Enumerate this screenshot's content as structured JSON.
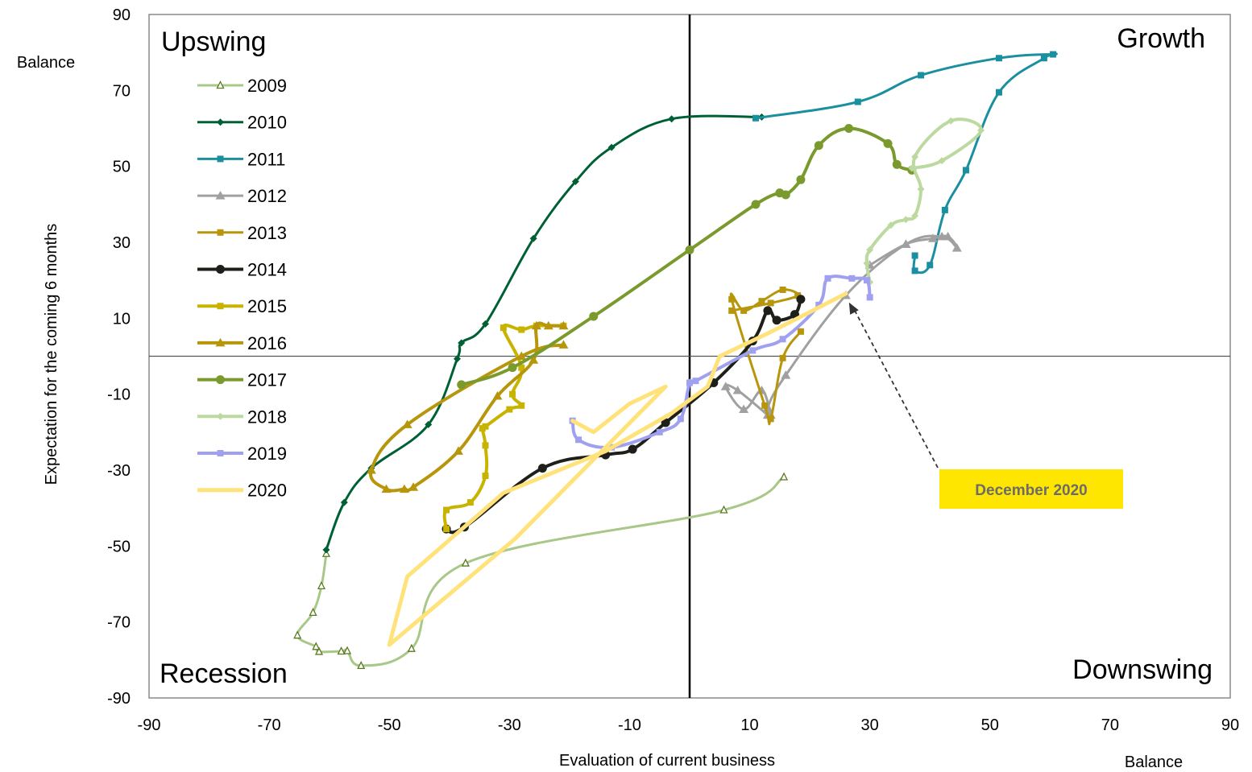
{
  "chart_data": {
    "type": "line",
    "subtype": "connected-scatter (ifo business cycle clock)",
    "title": "",
    "xlabel": "Evaluation  of current business",
    "ylabel": "Expectation for the coming 6 months",
    "x_unit_label": "Balance",
    "y_unit_label": "Balance",
    "xlim": [
      -90,
      90
    ],
    "ylim": [
      -90,
      90
    ],
    "x_ticks": [
      -90,
      -70,
      -50,
      -30,
      -10,
      10,
      30,
      50,
      70,
      90
    ],
    "y_ticks": [
      -90,
      -70,
      -50,
      -30,
      -10,
      10,
      30,
      50,
      70,
      90
    ],
    "grid": false,
    "legend_position": "top-left",
    "quadrants": {
      "top_left": "Upswing",
      "top_right": "Growth",
      "bottom_left": "Recession",
      "bottom_right": "Downswing"
    },
    "annotation": {
      "text": "December 2020",
      "points_to": [
        26,
        15
      ],
      "background": "#ffe600"
    },
    "series": [
      {
        "name": "2009",
        "color": "#a8c888",
        "marker": "triangle-hollow",
        "lineWidth": 3,
        "points": [
          [
            15.7,
            -31.8
          ],
          [
            5.7,
            -40.5
          ],
          [
            -37.3,
            -54.5
          ],
          [
            -46.3,
            -77
          ],
          [
            -54.7,
            -81.5
          ],
          [
            -57,
            -77.6
          ],
          [
            -58,
            -77.7
          ],
          [
            -61.7,
            -77.8
          ],
          [
            -62.2,
            -76.5
          ],
          [
            -65.3,
            -73.5
          ],
          [
            -62.7,
            -67.5
          ],
          [
            -61.3,
            -60.5
          ],
          [
            -60.5,
            -52
          ]
        ]
      },
      {
        "name": "2010",
        "color": "#006035",
        "marker": "diamond",
        "lineWidth": 3,
        "points": [
          [
            -60.5,
            -51
          ],
          [
            -57.5,
            -38.5
          ],
          [
            -53,
            -29.5
          ],
          [
            -43.5,
            -18
          ],
          [
            -38.7,
            -0.7
          ],
          [
            -38,
            3.5
          ],
          [
            -34,
            8.5
          ],
          [
            -26,
            31
          ],
          [
            -19,
            46
          ],
          [
            -13,
            55
          ],
          [
            -3,
            62.5
          ],
          [
            12,
            63
          ]
        ]
      },
      {
        "name": "2011",
        "color": "#1a8fa0",
        "marker": "square",
        "lineWidth": 3,
        "points": [
          [
            11,
            62.7
          ],
          [
            28,
            67
          ],
          [
            38.5,
            74
          ],
          [
            51.5,
            78.5
          ],
          [
            60.5,
            79.5
          ],
          [
            59,
            78.5
          ],
          [
            51.5,
            69.5
          ],
          [
            46,
            49
          ],
          [
            42.5,
            38.5
          ],
          [
            40,
            24
          ],
          [
            37.5,
            22.5
          ],
          [
            37.5,
            26.5
          ]
        ]
      },
      {
        "name": "2012",
        "color": "#a0a0a0",
        "marker": "triangle",
        "lineWidth": 3,
        "points": [
          [
            30,
            24
          ],
          [
            36,
            29.5
          ],
          [
            40.5,
            31
          ],
          [
            43,
            31.5
          ],
          [
            44.5,
            28.5
          ],
          [
            42,
            31.5
          ],
          [
            36,
            29.5
          ],
          [
            26,
            16
          ],
          [
            16,
            -5
          ],
          [
            13,
            -13.5
          ],
          [
            13.5,
            -15.5
          ],
          [
            12,
            -9
          ],
          [
            9,
            -14
          ],
          [
            6,
            -8
          ],
          [
            8,
            -9
          ],
          [
            13,
            -15.5
          ]
        ]
      },
      {
        "name": "2013",
        "color": "#b8960c",
        "marker": "square",
        "lineWidth": 3,
        "points": [
          [
            18.5,
            6.5
          ],
          [
            15.5,
            -0.5
          ],
          [
            13.5,
            -16.5
          ],
          [
            12.5,
            -13
          ],
          [
            7,
            15
          ],
          [
            9,
            12
          ],
          [
            12,
            14.5
          ],
          [
            15.5,
            17.5
          ],
          [
            18,
            16
          ],
          [
            13.5,
            14
          ],
          [
            7,
            12
          ]
        ]
      },
      {
        "name": "2014",
        "color": "#1f1f1a",
        "marker": "circle",
        "lineWidth": 4,
        "points": [
          [
            18.5,
            15
          ],
          [
            17.5,
            11
          ],
          [
            14.5,
            9.5
          ],
          [
            13,
            12
          ],
          [
            10.5,
            4
          ],
          [
            4,
            -7
          ],
          [
            -4,
            -17.5
          ],
          [
            -9.5,
            -24.5
          ],
          [
            -14,
            -26
          ],
          [
            -24.5,
            -29.5
          ],
          [
            -37.5,
            -45
          ],
          [
            -40.5,
            -45.5
          ]
        ]
      },
      {
        "name": "2015",
        "color": "#c8b400",
        "marker": "square",
        "lineWidth": 4,
        "points": [
          [
            -40.5,
            -45.5
          ],
          [
            -40.5,
            -40.5
          ],
          [
            -36.5,
            -38.5
          ],
          [
            -34,
            -31.5
          ],
          [
            -34,
            -23.5
          ],
          [
            -34.5,
            -19
          ],
          [
            -34,
            -18.5
          ],
          [
            -30,
            -14
          ],
          [
            -28,
            -13
          ],
          [
            -29.5,
            -10
          ],
          [
            -28,
            -3
          ],
          [
            -31,
            7.5
          ],
          [
            -28,
            7
          ],
          [
            -25.5,
            8
          ],
          [
            -21,
            8
          ]
        ]
      },
      {
        "name": "2016",
        "color": "#b8960c",
        "marker": "triangle",
        "lineWidth": 4,
        "points": [
          [
            -21,
            8
          ],
          [
            -23.5,
            8
          ],
          [
            -25.5,
            8
          ],
          [
            -26,
            -1
          ],
          [
            -32,
            -10.5
          ],
          [
            -38.5,
            -25
          ],
          [
            -46,
            -34.5
          ],
          [
            -47.5,
            -35
          ],
          [
            -50.5,
            -35
          ],
          [
            -53,
            -30
          ],
          [
            -47,
            -18
          ],
          [
            -28,
            0
          ],
          [
            -21,
            3
          ]
        ]
      },
      {
        "name": "2017",
        "color": "#7a9a2e",
        "marker": "circle",
        "lineWidth": 4,
        "points": [
          [
            -38,
            -7.5
          ],
          [
            -29.5,
            -3
          ],
          [
            -16,
            10.5
          ],
          [
            0,
            28
          ],
          [
            11,
            40
          ],
          [
            15,
            43
          ],
          [
            16,
            42.5
          ],
          [
            18.5,
            46.5
          ],
          [
            21.5,
            55.5
          ],
          [
            26.5,
            60
          ],
          [
            33,
            56
          ],
          [
            34.5,
            50.5
          ],
          [
            37,
            49
          ]
        ]
      },
      {
        "name": "2018",
        "color": "#bcd9a0",
        "marker": "diamond",
        "lineWidth": 4,
        "points": [
          [
            37,
            49.5
          ],
          [
            42,
            51.5
          ],
          [
            48.5,
            59.5
          ],
          [
            43.5,
            62
          ],
          [
            37.5,
            52.5
          ],
          [
            38.5,
            44
          ],
          [
            37.5,
            37
          ],
          [
            36,
            36
          ],
          [
            33.5,
            34.5
          ],
          [
            30,
            28
          ],
          [
            29.5,
            24.5
          ],
          [
            30,
            19.5
          ]
        ]
      },
      {
        "name": "2019",
        "color": "#a0a0f0",
        "marker": "square",
        "lineWidth": 4,
        "points": [
          [
            30,
            15.5
          ],
          [
            29.5,
            20
          ],
          [
            27,
            20.5
          ],
          [
            23,
            20.5
          ],
          [
            21.5,
            13.5
          ],
          [
            15.5,
            4.5
          ],
          [
            10.5,
            1.5
          ],
          [
            1,
            -6.5
          ],
          [
            0,
            -7
          ],
          [
            -1.5,
            -16.5
          ],
          [
            -5,
            -20
          ],
          [
            -13,
            -24
          ],
          [
            -18.5,
            -22
          ],
          [
            -19.5,
            -17
          ]
        ]
      },
      {
        "name": "2020",
        "color": "#ffe37a",
        "marker": "none",
        "lineWidth": 5,
        "points": [
          [
            -19.5,
            -17
          ],
          [
            -16,
            -20
          ],
          [
            -10,
            -12.5
          ],
          [
            -4,
            -8
          ],
          [
            -29,
            -48
          ],
          [
            -50,
            -76
          ],
          [
            -47,
            -58
          ],
          [
            -31,
            -36
          ],
          [
            -14,
            -25
          ],
          [
            -3,
            -15
          ],
          [
            3,
            -8
          ],
          [
            5,
            0
          ],
          [
            13,
            6
          ],
          [
            18,
            10
          ],
          [
            26,
            16.5
          ]
        ]
      }
    ]
  }
}
